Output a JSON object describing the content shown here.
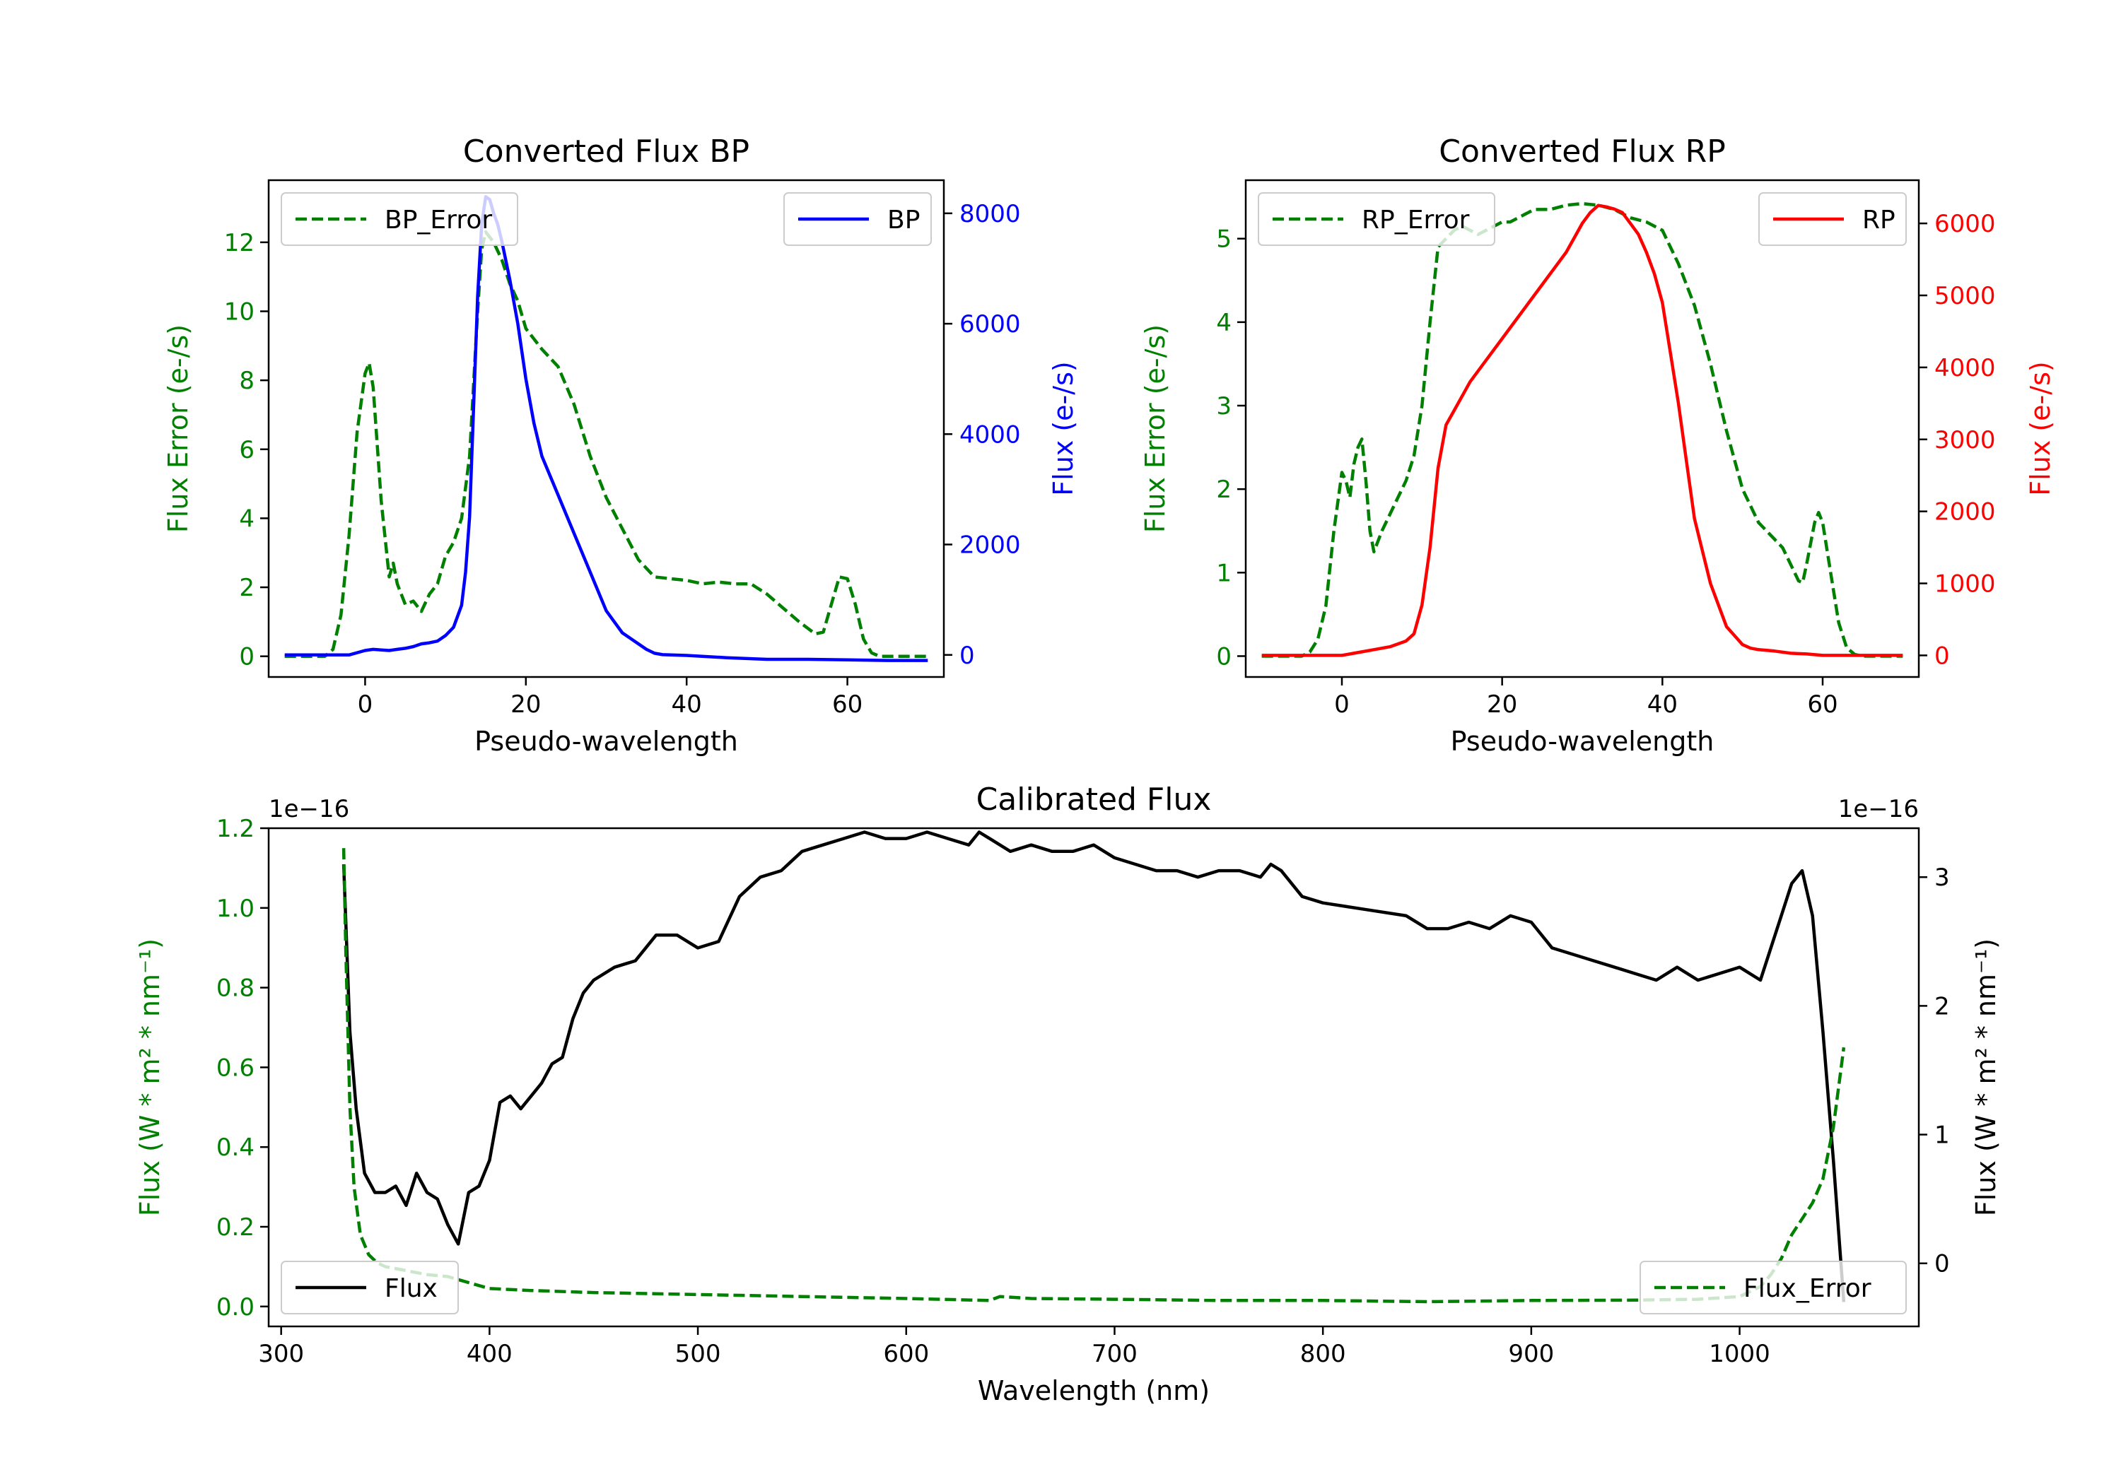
{
  "colors": {
    "green": "#008000",
    "blue": "#0000ff",
    "red": "#ff0000",
    "black": "#000000"
  },
  "chart_data": [
    {
      "id": "bp",
      "type": "line",
      "title": "Converted Flux BP",
      "xlabel": "Pseudo-wavelength",
      "ylabel_left": "Flux Error (e-/s)",
      "ylabel_right": "Flux (e-/s)",
      "xlim": [
        -12,
        72
      ],
      "ylim_left": [
        -0.6,
        13.8
      ],
      "ylim_right": [
        -400,
        8600
      ],
      "xticks": [
        0,
        20,
        40,
        60
      ],
      "yticks_left": [
        0,
        2,
        4,
        6,
        8,
        10,
        12
      ],
      "yticks_right": [
        0,
        2000,
        4000,
        6000,
        8000
      ],
      "right_color": "#0000ff",
      "legend_left": "BP_Error",
      "legend_right": "BP",
      "series": [
        {
          "name": "BP_Error",
          "axis": "left",
          "color": "#008000",
          "dash": true,
          "x": [
            -10,
            -5,
            -4,
            -3,
            -2,
            -1,
            0,
            0.5,
            1,
            2,
            3,
            3.5,
            4,
            5,
            6,
            7,
            8,
            9,
            10,
            11,
            12,
            13,
            14,
            14.5,
            15,
            16,
            17,
            18,
            19,
            20,
            22,
            24,
            26,
            28,
            30,
            32,
            34,
            36,
            38,
            40,
            42,
            44,
            46,
            48,
            50,
            52,
            54,
            56,
            57,
            58,
            59,
            60,
            61,
            62,
            63,
            64,
            65,
            70
          ],
          "y": [
            0,
            0,
            0.2,
            1.2,
            3.5,
            6.5,
            8.2,
            8.5,
            7.8,
            4.5,
            2.3,
            2.7,
            2.1,
            1.5,
            1.6,
            1.3,
            1.8,
            2.1,
            2.9,
            3.3,
            4.0,
            5.8,
            10.0,
            11.8,
            12.3,
            12.0,
            11.5,
            10.8,
            10.3,
            9.5,
            8.9,
            8.4,
            7.3,
            5.8,
            4.6,
            3.7,
            2.8,
            2.3,
            2.25,
            2.2,
            2.1,
            2.15,
            2.1,
            2.1,
            1.8,
            1.4,
            1.0,
            0.65,
            0.7,
            1.5,
            2.3,
            2.25,
            1.5,
            0.5,
            0.1,
            0,
            0,
            0
          ]
        },
        {
          "name": "BP",
          "axis": "right",
          "color": "#0000ff",
          "dash": false,
          "x": [
            -10,
            -5,
            -2,
            0,
            1,
            2,
            3,
            4,
            5,
            6,
            7,
            8,
            9,
            10,
            11,
            12,
            12.5,
            13,
            13.5,
            14,
            14.5,
            15,
            15.5,
            16,
            16.5,
            17,
            18,
            19,
            20,
            21,
            22,
            24,
            26,
            28,
            30,
            32,
            33,
            34,
            35,
            36,
            37,
            38,
            40,
            45,
            50,
            55,
            60,
            65,
            70
          ],
          "y": [
            0,
            0,
            0,
            80,
            100,
            90,
            80,
            100,
            120,
            150,
            200,
            220,
            250,
            350,
            500,
            900,
            1500,
            2500,
            4500,
            6500,
            7800,
            8300,
            8250,
            8000,
            7800,
            7500,
            6800,
            6000,
            5000,
            4200,
            3600,
            2900,
            2200,
            1500,
            800,
            400,
            300,
            200,
            100,
            30,
            5,
            0,
            -10,
            -50,
            -80,
            -80,
            -90,
            -100,
            -100
          ]
        }
      ]
    },
    {
      "id": "rp",
      "type": "line",
      "title": "Converted Flux RP",
      "xlabel": "Pseudo-wavelength",
      "ylabel_left": "Flux Error (e-/s)",
      "ylabel_right": "Flux (e-/s)",
      "xlim": [
        -12,
        72
      ],
      "ylim_left": [
        -0.25,
        5.7
      ],
      "ylim_right": [
        -300,
        6600
      ],
      "xticks": [
        0,
        20,
        40,
        60
      ],
      "yticks_left": [
        0,
        1,
        2,
        3,
        4,
        5
      ],
      "yticks_right": [
        0,
        1000,
        2000,
        3000,
        4000,
        5000,
        6000
      ],
      "right_color": "#ff0000",
      "legend_left": "RP_Error",
      "legend_right": "RP",
      "series": [
        {
          "name": "RP_Error",
          "axis": "left",
          "color": "#008000",
          "dash": true,
          "x": [
            -10,
            -5,
            -4,
            -3,
            -2,
            -1,
            0,
            0.5,
            1,
            1.5,
            2,
            2.5,
            3,
            3.5,
            4,
            5,
            6,
            7,
            8,
            9,
            10,
            11,
            12,
            13,
            14,
            15,
            16,
            17,
            18,
            19,
            20,
            21,
            22,
            23,
            24,
            26,
            28,
            30,
            32,
            34,
            36,
            38,
            40,
            42,
            44,
            46,
            48,
            50,
            52,
            54,
            55,
            56,
            57,
            57.5,
            58,
            59,
            59.5,
            60,
            61,
            62,
            63,
            64,
            65,
            70
          ],
          "y": [
            0,
            0,
            0.05,
            0.2,
            0.6,
            1.5,
            2.2,
            2.1,
            1.9,
            2.3,
            2.5,
            2.6,
            2.1,
            1.5,
            1.25,
            1.5,
            1.7,
            1.9,
            2.1,
            2.4,
            3.0,
            4.0,
            4.9,
            5.0,
            5.1,
            5.15,
            5.1,
            5.05,
            5.1,
            5.15,
            5.2,
            5.2,
            5.25,
            5.3,
            5.35,
            5.35,
            5.4,
            5.42,
            5.4,
            5.35,
            5.25,
            5.2,
            5.1,
            4.7,
            4.2,
            3.5,
            2.7,
            2.0,
            1.6,
            1.4,
            1.3,
            1.1,
            0.9,
            0.88,
            1.1,
            1.6,
            1.72,
            1.6,
            1.0,
            0.4,
            0.1,
            0.02,
            0,
            0
          ]
        },
        {
          "name": "RP",
          "axis": "right",
          "color": "#ff0000",
          "dash": false,
          "x": [
            -10,
            -5,
            0,
            2,
            4,
            6,
            8,
            9,
            10,
            11,
            12,
            13,
            14,
            15,
            16,
            18,
            20,
            22,
            24,
            26,
            28,
            29,
            30,
            31,
            32,
            33,
            34,
            35,
            36,
            37,
            38,
            39,
            40,
            41,
            42,
            43,
            44,
            46,
            48,
            50,
            51,
            52,
            54,
            56,
            58,
            60,
            62,
            65,
            70
          ],
          "y": [
            0,
            0,
            0,
            40,
            80,
            120,
            200,
            300,
            700,
            1500,
            2600,
            3200,
            3400,
            3600,
            3800,
            4100,
            4400,
            4700,
            5000,
            5300,
            5600,
            5800,
            6000,
            6150,
            6250,
            6230,
            6200,
            6150,
            6000,
            5850,
            5600,
            5300,
            4900,
            4200,
            3500,
            2700,
            1900,
            1000,
            400,
            150,
            100,
            80,
            60,
            30,
            20,
            0,
            0,
            0,
            0
          ]
        }
      ]
    },
    {
      "id": "cal",
      "type": "line",
      "title": "Calibrated Flux",
      "xlabel": "Wavelength (nm)",
      "ylabel_left": "Flux (W * m² * nm⁻¹)",
      "ylabel_right": "Flux (W * m² * nm⁻¹)",
      "offset_left": "1e−16",
      "offset_right": "1e−16",
      "xlim": [
        294,
        1086
      ],
      "ylim_left": [
        -0.05,
        1.2
      ],
      "ylim_right": [
        -0.49,
        3.38
      ],
      "xticks": [
        300,
        400,
        500,
        600,
        700,
        800,
        900,
        1000
      ],
      "yticks_left": [
        0.0,
        0.2,
        0.4,
        0.6,
        0.8,
        1.0,
        1.2
      ],
      "yticks_right": [
        0,
        1,
        2,
        3
      ],
      "right_color": "#000000",
      "legend_left": "Flux",
      "legend_right": "Flux_Error",
      "series": [
        {
          "name": "Flux",
          "axis": "right",
          "color": "#000000",
          "dash": false,
          "x": [
            330,
            333,
            336,
            340,
            345,
            350,
            355,
            360,
            365,
            370,
            375,
            380,
            385,
            390,
            395,
            400,
            405,
            410,
            415,
            420,
            425,
            430,
            435,
            440,
            445,
            450,
            460,
            470,
            480,
            490,
            500,
            510,
            520,
            530,
            540,
            550,
            560,
            570,
            580,
            590,
            600,
            610,
            620,
            630,
            635,
            640,
            645,
            650,
            660,
            670,
            680,
            690,
            700,
            710,
            720,
            730,
            740,
            750,
            760,
            770,
            775,
            780,
            790,
            800,
            820,
            840,
            850,
            860,
            870,
            880,
            890,
            900,
            910,
            920,
            930,
            940,
            950,
            960,
            970,
            980,
            990,
            1000,
            1010,
            1020,
            1025,
            1030,
            1035,
            1040,
            1045,
            1050
          ],
          "y": [
            3.1,
            1.8,
            1.2,
            0.7,
            0.55,
            0.55,
            0.6,
            0.45,
            0.7,
            0.55,
            0.5,
            0.3,
            0.15,
            0.55,
            0.6,
            0.8,
            1.25,
            1.3,
            1.2,
            1.3,
            1.4,
            1.55,
            1.6,
            1.9,
            2.1,
            2.2,
            2.3,
            2.35,
            2.55,
            2.55,
            2.45,
            2.5,
            2.85,
            3.0,
            3.05,
            3.2,
            3.25,
            3.3,
            3.35,
            3.3,
            3.3,
            3.35,
            3.3,
            3.25,
            3.35,
            3.3,
            3.25,
            3.2,
            3.25,
            3.2,
            3.2,
            3.25,
            3.15,
            3.1,
            3.05,
            3.05,
            3.0,
            3.05,
            3.05,
            3.0,
            3.1,
            3.05,
            2.85,
            2.8,
            2.75,
            2.7,
            2.6,
            2.6,
            2.65,
            2.6,
            2.7,
            2.65,
            2.45,
            2.4,
            2.35,
            2.3,
            2.25,
            2.2,
            2.3,
            2.2,
            2.25,
            2.3,
            2.2,
            2.7,
            2.95,
            3.05,
            2.7,
            1.8,
            0.8,
            -0.3
          ]
        },
        {
          "name": "Flux_Error",
          "axis": "left",
          "color": "#008000",
          "dash": true,
          "x": [
            330,
            331,
            333,
            335,
            338,
            342,
            346,
            350,
            360,
            370,
            380,
            390,
            400,
            420,
            450,
            500,
            550,
            600,
            640,
            645,
            660,
            700,
            750,
            800,
            850,
            900,
            950,
            980,
            1000,
            1010,
            1015,
            1020,
            1025,
            1030,
            1035,
            1040,
            1045,
            1050
          ],
          "y": [
            1.15,
            0.9,
            0.5,
            0.3,
            0.18,
            0.13,
            0.11,
            0.1,
            0.09,
            0.08,
            0.075,
            0.06,
            0.045,
            0.04,
            0.035,
            0.03,
            0.025,
            0.02,
            0.015,
            0.025,
            0.02,
            0.018,
            0.015,
            0.015,
            0.012,
            0.015,
            0.016,
            0.018,
            0.025,
            0.05,
            0.08,
            0.12,
            0.18,
            0.22,
            0.26,
            0.32,
            0.45,
            0.65
          ]
        }
      ]
    }
  ]
}
